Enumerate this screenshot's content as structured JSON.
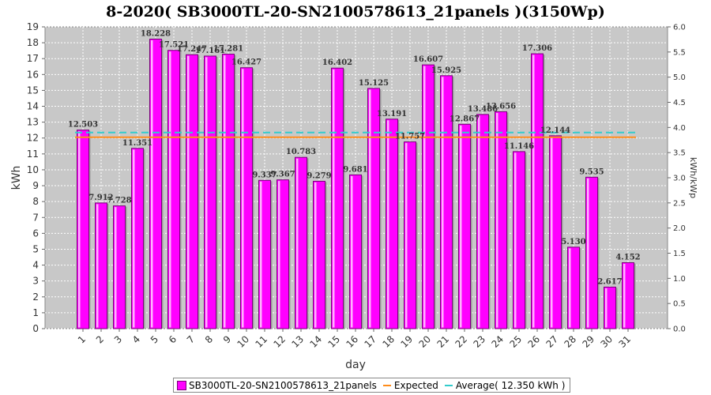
{
  "chart_data": {
    "type": "bar",
    "title": "8-2020( SB3000TL-20-SN2100578613_21panels )(3150Wp)",
    "xlabel": "day",
    "ylabel": "kWh",
    "ylabel_right": "kWh/kWp",
    "ylim": [
      0,
      19
    ],
    "ylim_right": [
      0.0,
      6.0
    ],
    "categories": [
      "1",
      "2",
      "3",
      "4",
      "5",
      "6",
      "7",
      "8",
      "9",
      "10",
      "11",
      "12",
      "13",
      "14",
      "15",
      "16",
      "17",
      "18",
      "19",
      "20",
      "21",
      "22",
      "23",
      "24",
      "25",
      "26",
      "27",
      "28",
      "29",
      "30",
      "31"
    ],
    "series": [
      {
        "name": "SB3000TL-20-SN2100578613_21panels",
        "color": "#ff00ff",
        "values": [
          12.503,
          7.912,
          7.728,
          11.351,
          18.228,
          17.521,
          17.247,
          17.161,
          17.281,
          16.427,
          9.337,
          9.367,
          10.783,
          9.279,
          16.402,
          9.681,
          15.125,
          13.191,
          11.757,
          16.607,
          15.925,
          12.867,
          13.486,
          13.656,
          11.146,
          17.306,
          12.144,
          5.13,
          9.535,
          2.617,
          4.152
        ],
        "value_labels": [
          "12.503",
          "7.912",
          "7.728",
          "11.351",
          "18.228",
          "17.521",
          "17.247",
          "17.161",
          "17.281",
          "16.427",
          "9.337",
          "9.367",
          "10.783",
          "9.279",
          "16.402",
          "9.681",
          "15.125",
          "13.191",
          "11.757",
          "16.607",
          "15.925",
          "12.867",
          "13.486",
          "13.656",
          "11.146",
          "17.306",
          "12.144",
          "5.130",
          "9.535",
          "2.617",
          "4.152"
        ]
      }
    ],
    "expected": {
      "name": "Expected",
      "value": 12.05,
      "color": "#ff8c1a"
    },
    "average": {
      "name": "Average( 12.350 kWh )",
      "value": 12.35,
      "color": "#33cccc"
    },
    "grid": true,
    "legend_position": "bottom"
  }
}
